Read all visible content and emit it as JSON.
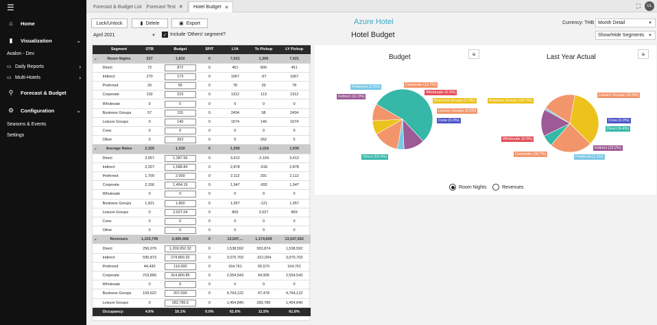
{
  "sidebar": {
    "home": "Home",
    "visualization": "Visualization",
    "org": "Avalon - Dev",
    "daily_reports": "Daily Reports",
    "multi_hotels": "Multi-Hotels",
    "forecast_budget": "Forecast & Budget",
    "configuration": "Configuration",
    "seasons": "Seasons & Events",
    "settings": "Settings"
  },
  "tabs": [
    {
      "label": "Forecast & Budget List"
    },
    {
      "label": "Forecast Test"
    },
    {
      "label": "Hotel Budget"
    }
  ],
  "avatar": "UL",
  "toolbar": {
    "lock": "Lock/Unlock",
    "delete": "Delete",
    "export": "Export"
  },
  "month": "April 2021",
  "include_others": "Include 'Others' segment?",
  "hotel_name": "Azure Hotel",
  "page_title": "Hotel Budget",
  "currency": "Currency: THB",
  "view_select": "Month Detail",
  "show_hide": "Show/Hide Segments",
  "table": {
    "headers": [
      "Segment",
      "OTB",
      "Budget",
      "SPIT",
      "LYA",
      "To Pickup",
      "LY Pickup"
    ],
    "groups": [
      {
        "name": "Room Nights",
        "totals": [
          "527",
          "1,832",
          "0",
          "7,021",
          "1,305",
          "7,021"
        ],
        "rows": [
          [
            "Direct",
            "72",
            "872",
            "0",
            "451",
            "800",
            "451"
          ],
          [
            "Indirect",
            "270",
            "173",
            "0",
            "1067",
            "-97",
            "1067"
          ],
          [
            "Preferred",
            "26",
            "55",
            "0",
            "78",
            "29",
            "78"
          ],
          [
            "Corporate",
            "102",
            "215",
            "0",
            "1312",
            "113",
            "1312"
          ],
          [
            "Wholesale",
            "0",
            "0",
            "0",
            "0",
            "0",
            "0"
          ],
          [
            "Business Groups",
            "57",
            "115",
            "0",
            "2434",
            "58",
            "2434"
          ],
          [
            "Leisure Groups",
            "0",
            "140",
            "0",
            "1674",
            "140",
            "1674"
          ],
          [
            "Crew",
            "0",
            "0",
            "0",
            "0",
            "0",
            "0"
          ],
          [
            "Other",
            "0",
            "262",
            "0",
            "5",
            "262",
            "5"
          ]
        ]
      },
      {
        "name": "Average Rates",
        "totals": [
          "2,326",
          "1,310",
          "0",
          "1,930",
          "-1,016",
          "1,930"
        ],
        "rows": [
          [
            "Direct",
            "3,557",
            "1,387.56",
            "0",
            "3,412",
            "-2,169",
            "3,412"
          ],
          [
            "Indirect",
            "2,207",
            "1,588.84",
            "0",
            "2,878",
            "-618",
            "2,878"
          ],
          [
            "Preferred",
            "1,709",
            "2,000",
            "0",
            "2,112",
            "291",
            "2,112"
          ],
          [
            "Corporate",
            "2,156",
            "1,464.19",
            "0",
            "1,947",
            "-692",
            "1,947"
          ],
          [
            "Wholesale",
            "0",
            "0",
            "0",
            "0",
            "0",
            "0"
          ],
          [
            "Business Groups",
            "1,921",
            "1,800",
            "0",
            "1,957",
            "-121",
            "1,957"
          ],
          [
            "Leisure Groups",
            "0",
            "2,027.04",
            "0",
            "869",
            "2,027",
            "869"
          ],
          [
            "Crew",
            "0",
            "0",
            "0",
            "0",
            "0",
            "0"
          ],
          [
            "Other",
            "0",
            "0",
            "0",
            "0",
            "0",
            "0"
          ]
        ]
      },
      {
        "name": "Revenues",
        "totals": [
          "1,225,799",
          "2,400,408",
          "0",
          "13,547,...",
          "1,174,609",
          "13,547,562"
        ],
        "rows": [
          [
            "Direct",
            "256,079",
            "1,209,952.32",
            "0",
            "1,538,592",
            "953,874",
            "1,538,592"
          ],
          [
            "Indirect",
            "595,873",
            "274,869.32",
            "0",
            "3,070,703",
            "-321,004",
            "3,070,703"
          ],
          [
            "Preferred",
            "44,430",
            "110,000",
            "0",
            "164,761",
            "65,570",
            "164,761"
          ],
          [
            "Corporate",
            "219,896",
            "314,800.85",
            "0",
            "2,554,543",
            "94,905",
            "2,554,543"
          ],
          [
            "Wholesale",
            "0",
            "0",
            "0",
            "0",
            "0",
            "0"
          ],
          [
            "Business Groups",
            "109,522",
            "207,000",
            "0",
            "4,764,122",
            "97,478",
            "4,764,122"
          ],
          [
            "Leisure Groups",
            "0",
            "283,785.6",
            "0",
            "1,454,840",
            "283,786",
            "1,454,840"
          ]
        ]
      }
    ],
    "footer": [
      "Occupancy:",
      "4.6%",
      "16.1%",
      "0.0%",
      "61.6%",
      "11.5%",
      "61.6%"
    ]
  },
  "chart_data": [
    {
      "type": "pie",
      "title": "Budget",
      "slices": [
        {
          "label": "Direct (53.5%)",
          "value": 53.5,
          "color": "#35b8a8"
        },
        {
          "label": "Indirect (11.0%)",
          "value": 11.0,
          "color": "#9c5a96"
        },
        {
          "label": "Preferred (3.5%)",
          "value": 3.5,
          "color": "#7ac8e6"
        },
        {
          "label": "Corporate (13.7%)",
          "value": 13.7,
          "color": "#f2956a"
        },
        {
          "label": "Wholesale (0.0%)",
          "value": 0.0,
          "color": "#e34f5a"
        },
        {
          "label": "Business Groups (7.3%)",
          "value": 7.3,
          "color": "#ecc21c"
        },
        {
          "label": "Leisure Groups (8.9%)",
          "value": 8.9,
          "color": "#f2956a"
        },
        {
          "label": "Crew (0.0%)",
          "value": 0.0,
          "color": "#4d55c8"
        }
      ]
    },
    {
      "type": "pie",
      "title": "Last Year Actual",
      "slices": [
        {
          "label": "Business Groups (34.7%)",
          "value": 34.7,
          "color": "#ecc21c"
        },
        {
          "label": "Leisure Groups (23.9%)",
          "value": 23.9,
          "color": "#f2956a"
        },
        {
          "label": "Crew (0.0%)",
          "value": 0.0,
          "color": "#4d55c8"
        },
        {
          "label": "Direct (6.4%)",
          "value": 6.4,
          "color": "#35b8a8"
        },
        {
          "label": "Indirect (15.2%)",
          "value": 15.2,
          "color": "#9c5a96"
        },
        {
          "label": "Preferred (1.1%)",
          "value": 1.1,
          "color": "#7ac8e6"
        },
        {
          "label": "Corporate (18.7%)",
          "value": 18.7,
          "color": "#f2956a"
        },
        {
          "label": "Wholesale (0.0%)",
          "value": 0.0,
          "color": "#e34f5a"
        }
      ]
    }
  ],
  "radio": {
    "room_nights": "Room Nights",
    "revenues": "Revenues"
  }
}
